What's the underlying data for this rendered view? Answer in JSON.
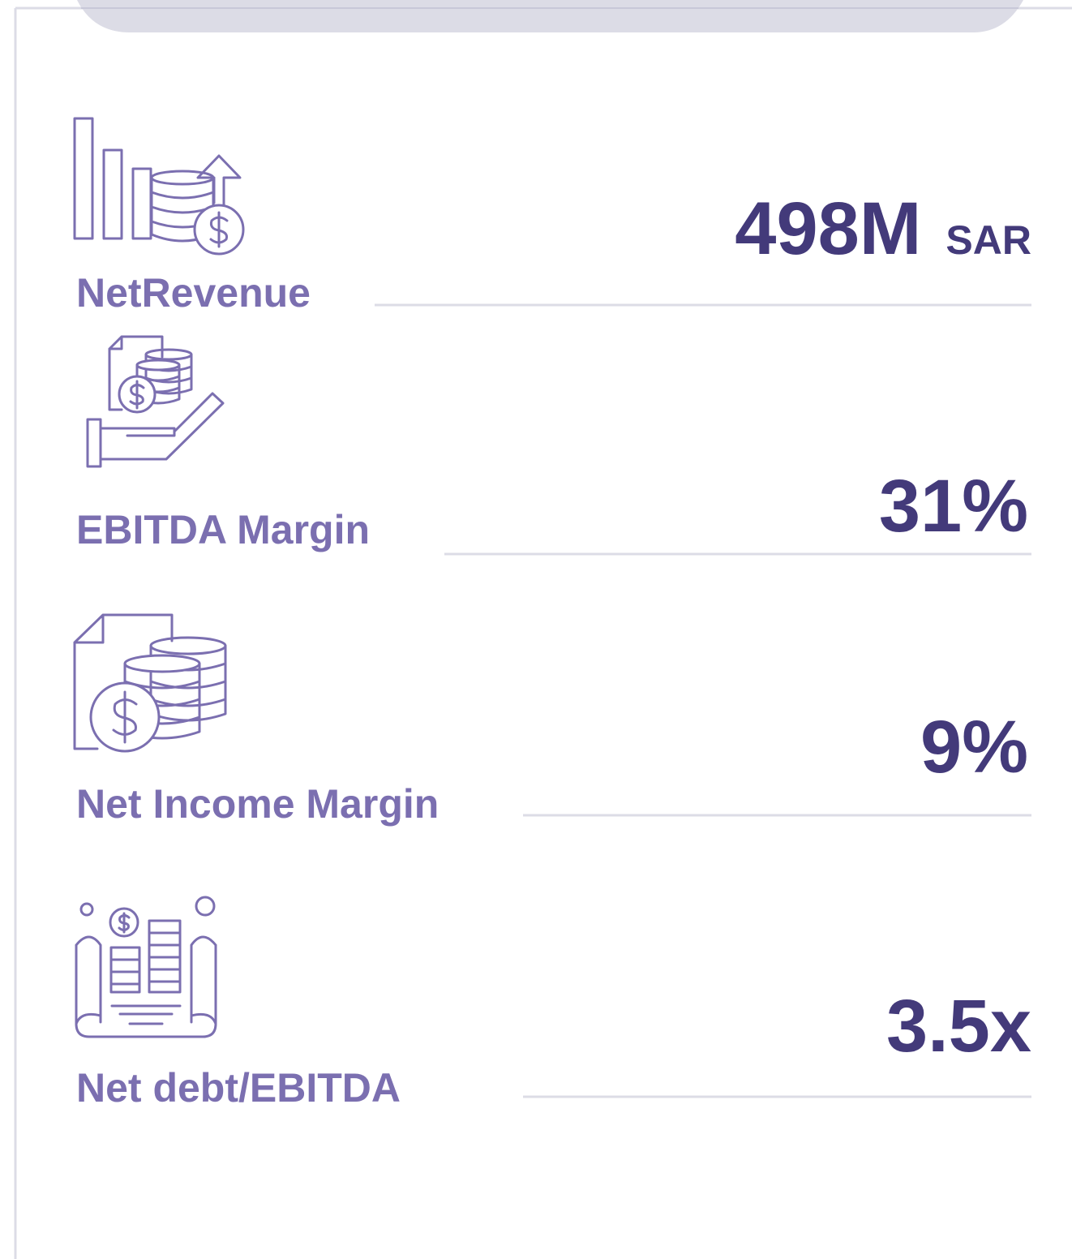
{
  "items": [
    {
      "label": "NetRevenue",
      "value": "498M",
      "unit": "SAR"
    },
    {
      "label": "EBITDA Margin",
      "value": "31%"
    },
    {
      "label": "Net Income Margin",
      "value": "9%"
    },
    {
      "label": "Net debt/EBITDA",
      "value": "3.5x"
    }
  ]
}
